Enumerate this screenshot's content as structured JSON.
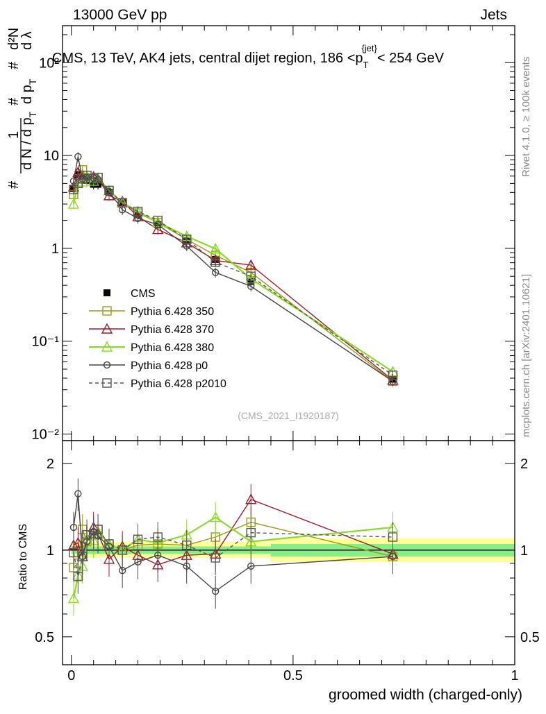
{
  "header": {
    "left": "13000 GeV pp",
    "right": "Jets"
  },
  "plot_title": {
    "main": "CMS, 13 TeV, AK4 jets, central dijet region, 186 <p",
    "sub": "T",
    "sup": "{jet}",
    "end": "< 254 GeV"
  },
  "side_labels": {
    "rivet": "Rivet 4.1.0, ≥ 100k events",
    "mcplots": "mcplots.cern.ch [arXiv:2401.10621]"
  },
  "analysis_id": "(CMS_2021_I1920187)",
  "y_axis_label_main": {
    "hash1": "#",
    "one": "1",
    "dN": "d N / d p",
    "dN_sub": "T",
    "hash2": "#",
    "hash3": "#",
    "d2N": "d²N",
    "dpt": "d p",
    "dpt_sub": "T",
    "dlambda": "d λ"
  },
  "y_axis_label_ratio": "Ratio to CMS",
  "x_axis_label": "groomed width (charged-only)",
  "legend": [
    {
      "name": "CMS",
      "color": "#000000",
      "marker": "filled-square",
      "dash": false
    },
    {
      "name": "Pythia 6.428 350",
      "color": "#9a9a1a",
      "marker": "open-square",
      "dash": false
    },
    {
      "name": "Pythia 6.428 370",
      "color": "#9b1c2b",
      "marker": "open-triangle",
      "dash": false
    },
    {
      "name": "Pythia 6.428 380",
      "color": "#8ed82a",
      "marker": "open-triangle",
      "dash": false
    },
    {
      "name": "Pythia 6.428 p0",
      "color": "#444444",
      "marker": "open-circle",
      "dash": false
    },
    {
      "name": "Pythia 6.428 p2010",
      "color": "#555555",
      "marker": "open-square",
      "dash": true
    }
  ],
  "chart_data": [
    {
      "type": "line",
      "panel": "main",
      "yscale": "log",
      "xlim": [
        -0.02,
        1.0
      ],
      "ylim": [
        0.0085,
        250
      ],
      "y_tick_labels": [
        "10⁻²",
        "10⁻¹",
        "1",
        "10",
        "10²"
      ],
      "y_tick_values": [
        0.01,
        0.1,
        1,
        10,
        100
      ],
      "x": [
        0.005,
        0.015,
        0.025,
        0.035,
        0.05,
        0.06,
        0.085,
        0.115,
        0.15,
        0.195,
        0.26,
        0.325,
        0.405,
        0.725
      ],
      "series": [
        {
          "name": "CMS",
          "values": [
            4.4,
            6.2,
            5.9,
            5.4,
            4.9,
            4.9,
            4.0,
            3.1,
            2.3,
            1.8,
            1.2,
            0.76,
            0.44,
            0.039
          ]
        },
        {
          "name": "Pythia 6.428 350",
          "values": [
            3.8,
            5.6,
            7.0,
            5.8,
            5.6,
            5.8,
            4.2,
            3.1,
            2.4,
            1.9,
            1.25,
            0.84,
            0.55,
            0.037
          ]
        },
        {
          "name": "Pythia 6.428 370",
          "values": [
            4.6,
            6.6,
            5.6,
            5.9,
            5.9,
            5.6,
            3.7,
            3.2,
            2.2,
            1.6,
            1.15,
            0.74,
            0.66,
            0.038
          ]
        },
        {
          "name": "Pythia 6.428 380",
          "values": [
            3.0,
            5.1,
            5.2,
            5.9,
            5.3,
            5.7,
            4.2,
            3.1,
            2.5,
            1.9,
            1.35,
            0.99,
            0.47,
            0.047
          ]
        },
        {
          "name": "Pythia 6.428 p0",
          "values": [
            5.3,
            9.7,
            5.6,
            5.8,
            5.7,
            5.5,
            4.1,
            2.6,
            2.1,
            1.8,
            1.06,
            0.55,
            0.39,
            0.037
          ]
        },
        {
          "name": "Pythia 6.428 p2010",
          "values": [
            4.3,
            5.0,
            5.6,
            6.1,
            5.6,
            5.8,
            4.2,
            3.1,
            2.5,
            2.0,
            1.25,
            0.71,
            0.5,
            0.043
          ]
        }
      ]
    },
    {
      "type": "line",
      "panel": "ratio",
      "yscale": "log",
      "xlim": [
        -0.02,
        1.0
      ],
      "ylim": [
        0.4,
        2.4
      ],
      "y_tick_labels": [
        "0.5",
        "1",
        "2"
      ],
      "y_tick_values": [
        0.5,
        1,
        2
      ],
      "x_tick_labels": [
        "0",
        "0.5",
        "1"
      ],
      "x_tick_values": [
        0,
        0.5,
        1
      ],
      "x": [
        0.005,
        0.015,
        0.025,
        0.035,
        0.05,
        0.06,
        0.085,
        0.115,
        0.15,
        0.195,
        0.26,
        0.325,
        0.405,
        0.725
      ],
      "band_1sigma": [
        {
          "x1": 0.0,
          "x2": 0.45,
          "lo": 0.97,
          "hi": 1.03
        },
        {
          "x1": 0.45,
          "x2": 1.0,
          "lo": 0.95,
          "hi": 1.05
        }
      ],
      "band_2sigma": [
        {
          "x1": 0.0,
          "x2": 0.45,
          "lo": 0.94,
          "hi": 1.07
        },
        {
          "x1": 0.45,
          "x2": 1.0,
          "lo": 0.91,
          "hi": 1.1
        }
      ],
      "series": [
        {
          "name": "Pythia 6.428 350",
          "values": [
            0.87,
            0.9,
            1.18,
            1.07,
            1.14,
            1.18,
            1.05,
            1.0,
            1.04,
            1.05,
            1.04,
            1.11,
            1.25,
            0.95
          ]
        },
        {
          "name": "Pythia 6.428 370",
          "values": [
            1.04,
            1.06,
            0.95,
            1.09,
            1.2,
            1.14,
            0.93,
            1.03,
            0.96,
            0.89,
            0.96,
            0.97,
            1.5,
            0.97
          ]
        },
        {
          "name": "Pythia 6.428 380",
          "values": [
            0.68,
            0.82,
            0.88,
            1.09,
            1.08,
            1.16,
            1.05,
            1.0,
            1.09,
            1.06,
            1.13,
            1.3,
            1.07,
            1.2
          ]
        },
        {
          "name": "Pythia 6.428 p0",
          "values": [
            1.2,
            1.57,
            0.95,
            1.07,
            1.16,
            1.12,
            1.03,
            0.85,
            0.91,
            0.96,
            0.88,
            0.72,
            0.88,
            0.95
          ]
        },
        {
          "name": "Pythia 6.428 p2010",
          "values": [
            0.98,
            0.81,
            0.95,
            1.13,
            1.14,
            1.18,
            1.05,
            1.0,
            1.09,
            1.11,
            1.04,
            0.94,
            1.15,
            1.11
          ]
        }
      ]
    }
  ]
}
